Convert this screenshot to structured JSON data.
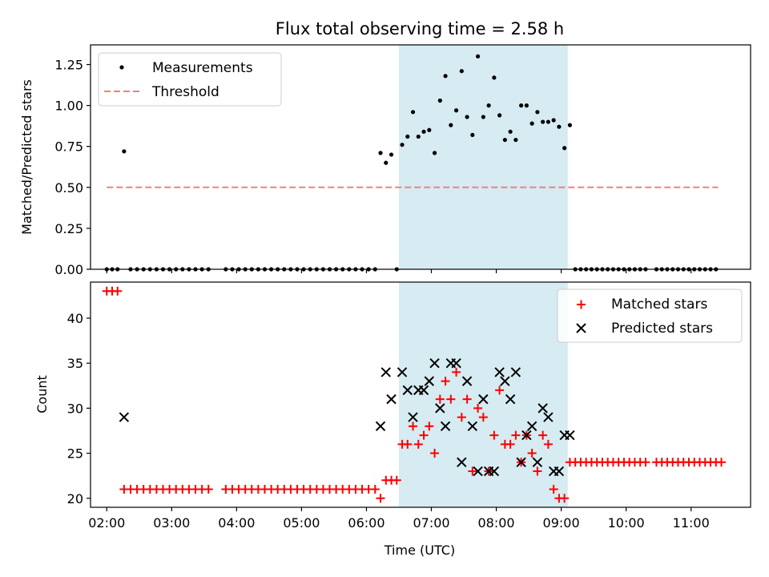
{
  "title": "Flux total observing time = 2.58 h",
  "colors": {
    "measurement": "#000000",
    "threshold": "#f08080",
    "matched": "#ff0000",
    "predicted": "#000000",
    "highlight": "#add8e6"
  },
  "chart_data": [
    {
      "type": "scatter",
      "panel": "top",
      "title": "Flux total observing time = 2.58 h",
      "xlabel": "",
      "ylabel": "Matched/Predicted stars",
      "xlim": [
        "01:45",
        "11:55"
      ],
      "ylim": [
        0,
        1.37
      ],
      "yticks": [
        "0.00",
        "0.25",
        "0.50",
        "0.75",
        "1.00",
        "1.25"
      ],
      "grid": false,
      "legend": "top-left",
      "highlight_span": [
        "06:30",
        "09:06"
      ],
      "threshold": {
        "name": "Threshold",
        "value": 0.5,
        "x_range": [
          "02:00",
          "11:25"
        ]
      },
      "series": [
        {
          "name": "Measurements",
          "points": [
            [
              "02:00",
              0
            ],
            [
              "02:05",
              0
            ],
            [
              "02:10",
              0
            ],
            [
              "02:16",
              0.72
            ],
            [
              "02:22",
              0
            ],
            [
              "02:28",
              0
            ],
            [
              "02:34",
              0
            ],
            [
              "02:40",
              0
            ],
            [
              "02:46",
              0
            ],
            [
              "02:52",
              0
            ],
            [
              "02:58",
              0
            ],
            [
              "03:04",
              0
            ],
            [
              "03:10",
              0
            ],
            [
              "03:16",
              0
            ],
            [
              "03:22",
              0
            ],
            [
              "03:28",
              0
            ],
            [
              "03:34",
              0
            ],
            [
              "03:50",
              0
            ],
            [
              "03:56",
              0
            ],
            [
              "04:02",
              0
            ],
            [
              "04:08",
              0
            ],
            [
              "04:14",
              0
            ],
            [
              "04:20",
              0
            ],
            [
              "04:26",
              0
            ],
            [
              "04:32",
              0
            ],
            [
              "04:38",
              0
            ],
            [
              "04:44",
              0
            ],
            [
              "04:50",
              0
            ],
            [
              "04:56",
              0
            ],
            [
              "05:02",
              0
            ],
            [
              "05:08",
              0
            ],
            [
              "05:14",
              0
            ],
            [
              "05:20",
              0
            ],
            [
              "05:26",
              0
            ],
            [
              "05:32",
              0
            ],
            [
              "05:38",
              0
            ],
            [
              "05:44",
              0
            ],
            [
              "05:50",
              0
            ],
            [
              "05:56",
              0
            ],
            [
              "06:02",
              0
            ],
            [
              "06:08",
              0
            ],
            [
              "06:13",
              0.71
            ],
            [
              "06:18",
              0.65
            ],
            [
              "06:23",
              0.7
            ],
            [
              "06:28",
              0
            ],
            [
              "06:33",
              0.76
            ],
            [
              "06:38",
              0.81
            ],
            [
              "06:43",
              0.96
            ],
            [
              "06:48",
              0.81
            ],
            [
              "06:53",
              0.84
            ],
            [
              "06:58",
              0.85
            ],
            [
              "07:03",
              0.71
            ],
            [
              "07:08",
              1.03
            ],
            [
              "07:13",
              1.18
            ],
            [
              "07:18",
              0.88
            ],
            [
              "07:23",
              0.97
            ],
            [
              "07:28",
              1.21
            ],
            [
              "07:33",
              0.93
            ],
            [
              "07:38",
              0.82
            ],
            [
              "07:43",
              1.3
            ],
            [
              "07:48",
              0.93
            ],
            [
              "07:53",
              1.0
            ],
            [
              "07:58",
              1.17
            ],
            [
              "08:03",
              0.94
            ],
            [
              "08:08",
              0.79
            ],
            [
              "08:13",
              0.84
            ],
            [
              "08:18",
              0.79
            ],
            [
              "08:23",
              1.0
            ],
            [
              "08:28",
              1.0
            ],
            [
              "08:33",
              0.89
            ],
            [
              "08:38",
              0.96
            ],
            [
              "08:43",
              0.9
            ],
            [
              "08:48",
              0.9
            ],
            [
              "08:53",
              0.91
            ],
            [
              "08:58",
              0.87
            ],
            [
              "09:03",
              0.74
            ],
            [
              "09:08",
              0.88
            ],
            [
              "09:13",
              0
            ],
            [
              "09:18",
              0
            ],
            [
              "09:23",
              0
            ],
            [
              "09:28",
              0
            ],
            [
              "09:33",
              0
            ],
            [
              "09:38",
              0
            ],
            [
              "09:43",
              0
            ],
            [
              "09:48",
              0
            ],
            [
              "09:53",
              0
            ],
            [
              "09:58",
              0
            ],
            [
              "10:03",
              0
            ],
            [
              "10:08",
              0
            ],
            [
              "10:13",
              0
            ],
            [
              "10:18",
              0
            ],
            [
              "10:28",
              0
            ],
            [
              "10:33",
              0
            ],
            [
              "10:38",
              0
            ],
            [
              "10:43",
              0
            ],
            [
              "10:48",
              0
            ],
            [
              "10:53",
              0
            ],
            [
              "10:58",
              0
            ],
            [
              "11:03",
              0
            ],
            [
              "11:08",
              0
            ],
            [
              "11:13",
              0
            ],
            [
              "11:18",
              0
            ],
            [
              "11:23",
              0
            ]
          ]
        }
      ]
    },
    {
      "type": "scatter",
      "panel": "bottom",
      "xlabel": "Time (UTC)",
      "ylabel": "Count",
      "xlim": [
        "01:45",
        "11:55"
      ],
      "ylim": [
        19,
        44
      ],
      "xticks": [
        "02:00",
        "03:00",
        "04:00",
        "05:00",
        "06:00",
        "07:00",
        "08:00",
        "09:00",
        "10:00",
        "11:00"
      ],
      "yticks": [
        "20",
        "25",
        "30",
        "35",
        "40"
      ],
      "grid": false,
      "legend": "top-right",
      "highlight_span": [
        "06:30",
        "09:06"
      ],
      "series": [
        {
          "name": "Matched stars",
          "marker": "plus",
          "points": [
            [
              "02:00",
              43
            ],
            [
              "02:05",
              43
            ],
            [
              "02:10",
              43
            ],
            [
              "02:16",
              21
            ],
            [
              "02:22",
              21
            ],
            [
              "02:28",
              21
            ],
            [
              "02:34",
              21
            ],
            [
              "02:40",
              21
            ],
            [
              "02:46",
              21
            ],
            [
              "02:52",
              21
            ],
            [
              "02:58",
              21
            ],
            [
              "03:04",
              21
            ],
            [
              "03:10",
              21
            ],
            [
              "03:16",
              21
            ],
            [
              "03:22",
              21
            ],
            [
              "03:28",
              21
            ],
            [
              "03:34",
              21
            ],
            [
              "03:50",
              21
            ],
            [
              "03:56",
              21
            ],
            [
              "04:02",
              21
            ],
            [
              "04:08",
              21
            ],
            [
              "04:14",
              21
            ],
            [
              "04:20",
              21
            ],
            [
              "04:26",
              21
            ],
            [
              "04:32",
              21
            ],
            [
              "04:38",
              21
            ],
            [
              "04:44",
              21
            ],
            [
              "04:50",
              21
            ],
            [
              "04:56",
              21
            ],
            [
              "05:02",
              21
            ],
            [
              "05:08",
              21
            ],
            [
              "05:14",
              21
            ],
            [
              "05:20",
              21
            ],
            [
              "05:26",
              21
            ],
            [
              "05:32",
              21
            ],
            [
              "05:38",
              21
            ],
            [
              "05:44",
              21
            ],
            [
              "05:50",
              21
            ],
            [
              "05:56",
              21
            ],
            [
              "06:02",
              21
            ],
            [
              "06:08",
              21
            ],
            [
              "06:13",
              20
            ],
            [
              "06:18",
              22
            ],
            [
              "06:23",
              22
            ],
            [
              "06:28",
              22
            ],
            [
              "06:33",
              26
            ],
            [
              "06:38",
              26
            ],
            [
              "06:43",
              28
            ],
            [
              "06:48",
              26
            ],
            [
              "06:53",
              27
            ],
            [
              "06:58",
              28
            ],
            [
              "07:03",
              25
            ],
            [
              "07:08",
              31
            ],
            [
              "07:13",
              33
            ],
            [
              "07:18",
              31
            ],
            [
              "07:23",
              34
            ],
            [
              "07:28",
              29
            ],
            [
              "07:33",
              31
            ],
            [
              "07:38",
              23
            ],
            [
              "07:43",
              30
            ],
            [
              "07:48",
              29
            ],
            [
              "07:53",
              23
            ],
            [
              "07:58",
              27
            ],
            [
              "08:03",
              32
            ],
            [
              "08:08",
              26
            ],
            [
              "08:13",
              26
            ],
            [
              "08:18",
              27
            ],
            [
              "08:23",
              24
            ],
            [
              "08:28",
              27
            ],
            [
              "08:33",
              25
            ],
            [
              "08:38",
              23
            ],
            [
              "08:43",
              27
            ],
            [
              "08:48",
              26
            ],
            [
              "08:53",
              21
            ],
            [
              "08:58",
              20
            ],
            [
              "09:03",
              20
            ],
            [
              "09:08",
              24
            ],
            [
              "09:13",
              24
            ],
            [
              "09:18",
              24
            ],
            [
              "09:23",
              24
            ],
            [
              "09:28",
              24
            ],
            [
              "09:33",
              24
            ],
            [
              "09:38",
              24
            ],
            [
              "09:43",
              24
            ],
            [
              "09:48",
              24
            ],
            [
              "09:53",
              24
            ],
            [
              "09:58",
              24
            ],
            [
              "10:03",
              24
            ],
            [
              "10:08",
              24
            ],
            [
              "10:13",
              24
            ],
            [
              "10:18",
              24
            ],
            [
              "10:28",
              24
            ],
            [
              "10:33",
              24
            ],
            [
              "10:38",
              24
            ],
            [
              "10:43",
              24
            ],
            [
              "10:48",
              24
            ],
            [
              "10:53",
              24
            ],
            [
              "10:58",
              24
            ],
            [
              "11:03",
              24
            ],
            [
              "11:08",
              24
            ],
            [
              "11:13",
              24
            ],
            [
              "11:18",
              24
            ],
            [
              "11:23",
              24
            ],
            [
              "11:28",
              24
            ]
          ]
        },
        {
          "name": "Predicted stars",
          "marker": "x",
          "points": [
            [
              "02:16",
              29
            ],
            [
              "06:13",
              28
            ],
            [
              "06:18",
              34
            ],
            [
              "06:23",
              31
            ],
            [
              "06:33",
              34
            ],
            [
              "06:38",
              32
            ],
            [
              "06:43",
              29
            ],
            [
              "06:48",
              32
            ],
            [
              "06:53",
              32
            ],
            [
              "06:58",
              33
            ],
            [
              "07:03",
              35
            ],
            [
              "07:08",
              30
            ],
            [
              "07:13",
              28
            ],
            [
              "07:18",
              35
            ],
            [
              "07:23",
              35
            ],
            [
              "07:28",
              24
            ],
            [
              "07:33",
              33
            ],
            [
              "07:38",
              28
            ],
            [
              "07:43",
              23
            ],
            [
              "07:48",
              31
            ],
            [
              "07:53",
              23
            ],
            [
              "07:58",
              23
            ],
            [
              "08:03",
              34
            ],
            [
              "08:08",
              33
            ],
            [
              "08:13",
              31
            ],
            [
              "08:18",
              34
            ],
            [
              "08:23",
              24
            ],
            [
              "08:28",
              27
            ],
            [
              "08:33",
              28
            ],
            [
              "08:38",
              24
            ],
            [
              "08:43",
              30
            ],
            [
              "08:48",
              29
            ],
            [
              "08:53",
              23
            ],
            [
              "08:58",
              23
            ],
            [
              "09:03",
              27
            ],
            [
              "09:08",
              27
            ]
          ]
        }
      ]
    }
  ]
}
